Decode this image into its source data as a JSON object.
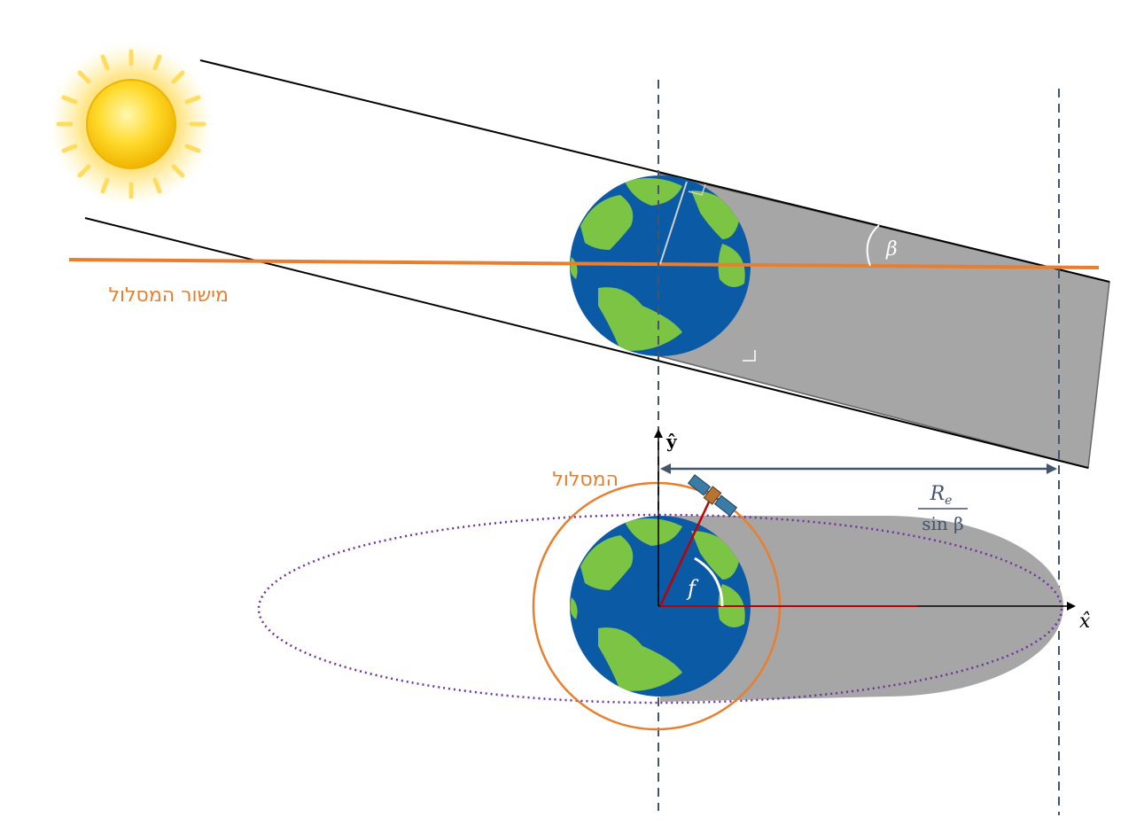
{
  "labels": {
    "orbit_plane": "מישור המסלול",
    "orbit": "המסלול",
    "beta": "β",
    "y_axis": "ŷ",
    "x_axis": "x̂",
    "true_anomaly": "f",
    "distance_numerator": "R",
    "distance_subscript": "e",
    "distance_denominator": "sin β"
  },
  "colors": {
    "orbit_accent": "#e87f2e",
    "shadow": "#a6a6a6",
    "ocean": "#0b5aa6",
    "land": "#7cc443",
    "guide_dashes": "#44546a",
    "orbit_path_dotted": "#7030a0",
    "radius_line": "#c00000",
    "sun": "#f5c400"
  },
  "icons": {
    "sun": "sun-icon",
    "earth": "earth-globe-icon",
    "satellite": "satellite-icon"
  }
}
